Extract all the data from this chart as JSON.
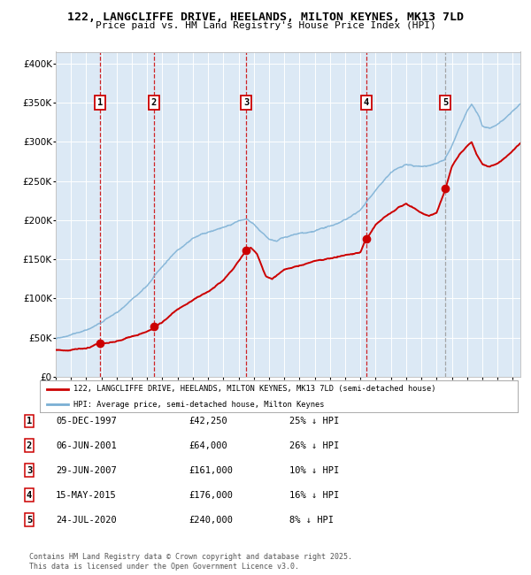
{
  "title": "122, LANGCLIFFE DRIVE, HEELANDS, MILTON KEYNES, MK13 7LD",
  "subtitle": "Price paid vs. HM Land Registry's House Price Index (HPI)",
  "background_color": "#dce9f5",
  "grid_color": "#ffffff",
  "red_line_color": "#cc0000",
  "blue_line_color": "#7aafd4",
  "sale_dates_x": [
    1997.92,
    2001.43,
    2007.49,
    2015.37,
    2020.56
  ],
  "sale_prices_y": [
    42250,
    64000,
    161000,
    176000,
    240000
  ],
  "sale_labels": [
    "1",
    "2",
    "3",
    "4",
    "5"
  ],
  "vline_red": [
    1997.92,
    2001.43,
    2007.49,
    2015.37
  ],
  "vline_gray": [
    2020.56
  ],
  "legend_red_label": "122, LANGCLIFFE DRIVE, HEELANDS, MILTON KEYNES, MK13 7LD (semi-detached house)",
  "legend_blue_label": "HPI: Average price, semi-detached house, Milton Keynes",
  "table_rows": [
    [
      "1",
      "05-DEC-1997",
      "£42,250",
      "25% ↓ HPI"
    ],
    [
      "2",
      "06-JUN-2001",
      "£64,000",
      "26% ↓ HPI"
    ],
    [
      "3",
      "29-JUN-2007",
      "£161,000",
      "10% ↓ HPI"
    ],
    [
      "4",
      "15-MAY-2015",
      "£176,000",
      "16% ↓ HPI"
    ],
    [
      "5",
      "24-JUL-2020",
      "£240,000",
      "8% ↓ HPI"
    ]
  ],
  "footnote": "Contains HM Land Registry data © Crown copyright and database right 2025.\nThis data is licensed under the Open Government Licence v3.0.",
  "ylim": [
    0,
    400000
  ],
  "xlim_start": 1995.0,
  "xlim_end": 2025.5
}
